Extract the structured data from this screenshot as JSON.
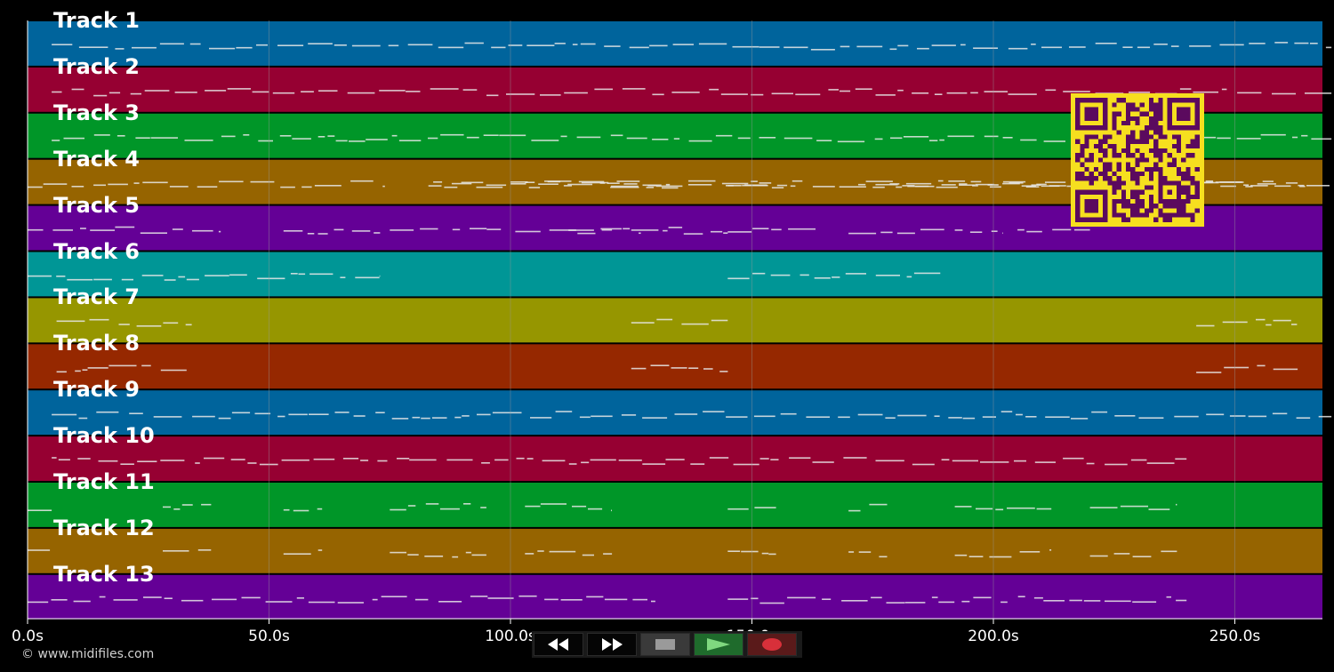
{
  "colors": {
    "background": "#000000",
    "grid": "#9a9a9a",
    "note": "#e8e8e8",
    "qr_fg": "#5b0a5e",
    "qr_bg": "#f6df1f"
  },
  "tracks": [
    {
      "label": "Track 1",
      "color": "#00649c"
    },
    {
      "label": "Track 2",
      "color": "#960032"
    },
    {
      "label": "Track 3",
      "color": "#009628"
    },
    {
      "label": "Track 4",
      "color": "#966400"
    },
    {
      "label": "Track 5",
      "color": "#640096"
    },
    {
      "label": "Track 6",
      "color": "#009696"
    },
    {
      "label": "Track 7",
      "color": "#969600"
    },
    {
      "label": "Track 8",
      "color": "#962800"
    },
    {
      "label": "Track 9",
      "color": "#00649c"
    },
    {
      "label": "Track 10",
      "color": "#960032"
    },
    {
      "label": "Track 11",
      "color": "#009628"
    },
    {
      "label": "Track 12",
      "color": "#966400"
    },
    {
      "label": "Track 13",
      "color": "#640096"
    }
  ],
  "time_axis": {
    "ticks": [
      {
        "label": "0.0s",
        "seconds": 0
      },
      {
        "label": "50.0s",
        "seconds": 50
      },
      {
        "label": "100.0s",
        "seconds": 100
      },
      {
        "label": "150.0s",
        "seconds": 150
      },
      {
        "label": "200.0s",
        "seconds": 200
      },
      {
        "label": "250.0s",
        "seconds": 250
      }
    ]
  },
  "footer": {
    "copyright": "© www.midifiles.com"
  },
  "transport": {
    "rewind_icon": "rewind-icon",
    "fast_forward_icon": "fast-forward-icon",
    "stop_icon": "stop-icon",
    "play_icon": "play-icon",
    "record_icon": "record-icon"
  }
}
